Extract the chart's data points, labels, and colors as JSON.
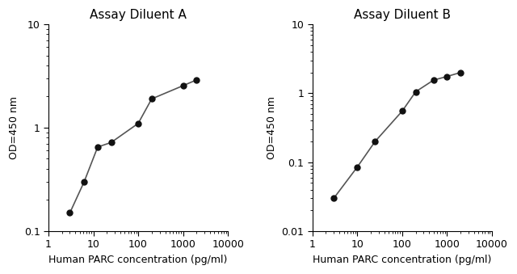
{
  "panel_A": {
    "title": "Assay Diluent A",
    "x": [
      3,
      6.25,
      12.5,
      25,
      100,
      200,
      1000,
      2000
    ],
    "y": [
      0.15,
      0.3,
      0.65,
      0.72,
      1.1,
      1.9,
      2.55,
      2.9
    ],
    "xlim": [
      1,
      10000
    ],
    "ylim": [
      0.1,
      10
    ],
    "xlabel": "Human PARC concentration (pg/ml)",
    "ylabel": "OD=450 nm",
    "xticks": [
      1,
      10,
      100,
      1000,
      10000
    ],
    "xtick_labels": [
      "1",
      "10",
      "100",
      "1000",
      "10000"
    ],
    "yticks": [
      0.1,
      1,
      10
    ],
    "ytick_labels": [
      "0.1",
      "1",
      "10"
    ]
  },
  "panel_B": {
    "title": "Assay Diluent B",
    "x": [
      3,
      10,
      25,
      100,
      200,
      500,
      1000,
      2000
    ],
    "y": [
      0.03,
      0.085,
      0.2,
      0.55,
      1.05,
      1.55,
      1.75,
      2.0
    ],
    "xlim": [
      1,
      10000
    ],
    "ylim": [
      0.01,
      10
    ],
    "xlabel": "Human PARC concentration (pg/ml)",
    "ylabel": "OD=450 nm",
    "xticks": [
      1,
      10,
      100,
      1000,
      10000
    ],
    "xtick_labels": [
      "1",
      "10",
      "100",
      "1000",
      "10000"
    ],
    "yticks": [
      0.01,
      0.1,
      1,
      10
    ],
    "ytick_labels": [
      "0.01",
      "0.1",
      "1",
      "10"
    ]
  },
  "line_color": "#555555",
  "marker_color": "#111111",
  "marker": "o",
  "marker_size": 5,
  "line_width": 1.2,
  "bg_color": "#ffffff",
  "title_fontsize": 11,
  "label_fontsize": 9,
  "tick_fontsize": 9
}
